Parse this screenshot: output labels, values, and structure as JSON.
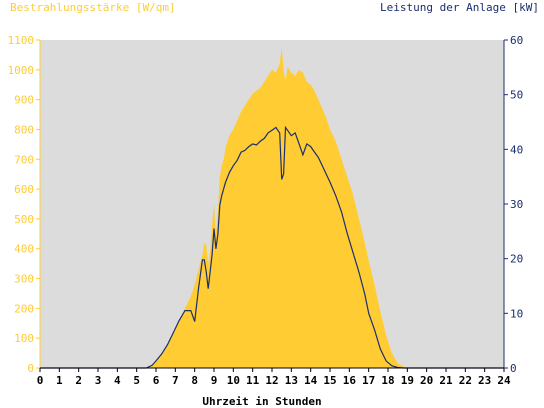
{
  "chart_data": {
    "type": "area",
    "left_axis_label": "Bestrahlungsstärke [W/qm]",
    "right_axis_label": "Leistung der Anlage [kW]",
    "xlabel": "Uhrzeit in Stunden",
    "xlim": [
      0,
      24
    ],
    "x_ticks": [
      "0",
      "1",
      "2",
      "3",
      "4",
      "5",
      "6",
      "7",
      "8",
      "9",
      "10",
      "11",
      "12",
      "13",
      "14",
      "15",
      "16",
      "17",
      "18",
      "19",
      "20",
      "21",
      "22",
      "23",
      "24"
    ],
    "ylim_left": [
      0,
      1100
    ],
    "y_ticks_left": [
      "0",
      "100",
      "200",
      "300",
      "400",
      "500",
      "600",
      "700",
      "800",
      "900",
      "1000",
      "1100"
    ],
    "ylim_right": [
      0,
      60
    ],
    "y_ticks_right": [
      "0",
      "10",
      "20",
      "30",
      "40",
      "50",
      "60"
    ],
    "grid": false,
    "colors": {
      "plot_background": "#dcdcdc",
      "irradiance": "#ffcc33",
      "power": "#1a2f6e",
      "left_axis_text": "#ffcc33",
      "right_axis_text": "#1a2f6e"
    },
    "series": [
      {
        "name": "Bestrahlungsstärke",
        "axis": "left",
        "style": "area",
        "x": [
          0,
          5.5,
          5.8,
          6.0,
          6.3,
          6.6,
          6.9,
          7.2,
          7.5,
          7.8,
          8.0,
          8.2,
          8.4,
          8.5,
          8.6,
          8.7,
          8.8,
          8.9,
          9.0,
          9.1,
          9.2,
          9.3,
          9.4,
          9.5,
          9.6,
          9.8,
          10.0,
          10.2,
          10.4,
          10.6,
          10.8,
          11.0,
          11.2,
          11.4,
          11.6,
          11.8,
          12.0,
          12.2,
          12.4,
          12.5,
          12.6,
          12.7,
          12.8,
          13.0,
          13.2,
          13.4,
          13.6,
          13.8,
          14.0,
          14.2,
          14.4,
          14.6,
          14.8,
          15.0,
          15.3,
          15.6,
          15.9,
          16.2,
          16.5,
          16.8,
          17.0,
          17.3,
          17.6,
          17.9,
          18.2,
          18.5,
          18.8,
          19.0,
          24
        ],
        "y": [
          0,
          0,
          10,
          25,
          50,
          80,
          120,
          160,
          200,
          240,
          280,
          330,
          380,
          420,
          410,
          350,
          390,
          480,
          550,
          450,
          520,
          640,
          680,
          700,
          740,
          780,
          800,
          830,
          860,
          880,
          900,
          920,
          930,
          940,
          960,
          980,
          1000,
          990,
          1020,
          1075,
          1000,
          960,
          1010,
          990,
          980,
          1000,
          990,
          960,
          950,
          930,
          900,
          870,
          840,
          800,
          760,
          700,
          640,
          580,
          500,
          420,
          360,
          280,
          190,
          110,
          50,
          15,
          5,
          0,
          0
        ]
      },
      {
        "name": "Leistung der Anlage",
        "axis": "right",
        "style": "line",
        "x": [
          0,
          5.5,
          5.8,
          6.0,
          6.3,
          6.6,
          6.9,
          7.2,
          7.5,
          7.8,
          8.0,
          8.2,
          8.4,
          8.5,
          8.6,
          8.7,
          8.8,
          8.9,
          9.0,
          9.1,
          9.2,
          9.3,
          9.4,
          9.5,
          9.6,
          9.8,
          10.0,
          10.2,
          10.4,
          10.6,
          10.8,
          11.0,
          11.2,
          11.4,
          11.6,
          11.8,
          12.0,
          12.2,
          12.4,
          12.5,
          12.6,
          12.7,
          12.8,
          13.0,
          13.2,
          13.4,
          13.6,
          13.8,
          14.0,
          14.2,
          14.4,
          14.6,
          14.8,
          15.0,
          15.3,
          15.6,
          15.9,
          16.2,
          16.5,
          16.8,
          17.0,
          17.3,
          17.6,
          17.9,
          18.2,
          18.5,
          18.8,
          19.0,
          24
        ],
        "y": [
          0,
          0,
          0.5,
          1.3,
          2.6,
          4.3,
          6.5,
          8.7,
          10.5,
          10.5,
          8.5,
          14.5,
          19.8,
          19.8,
          17.5,
          14.5,
          17.5,
          20.8,
          25.5,
          21.8,
          24.5,
          29.8,
          31.5,
          32.8,
          34.0,
          35.8,
          37.0,
          38.0,
          39.5,
          39.8,
          40.5,
          41.0,
          40.8,
          41.5,
          42.0,
          43.0,
          43.5,
          44.0,
          43.0,
          34.5,
          35.5,
          44.0,
          43.5,
          42.5,
          43.0,
          41.0,
          39.0,
          41.0,
          40.5,
          39.5,
          38.5,
          37.0,
          35.5,
          34.0,
          31.5,
          28.5,
          24.5,
          21.0,
          17.5,
          13.5,
          10.0,
          7.0,
          3.5,
          1.3,
          0.4,
          0.1,
          0,
          0,
          0
        ]
      }
    ]
  }
}
